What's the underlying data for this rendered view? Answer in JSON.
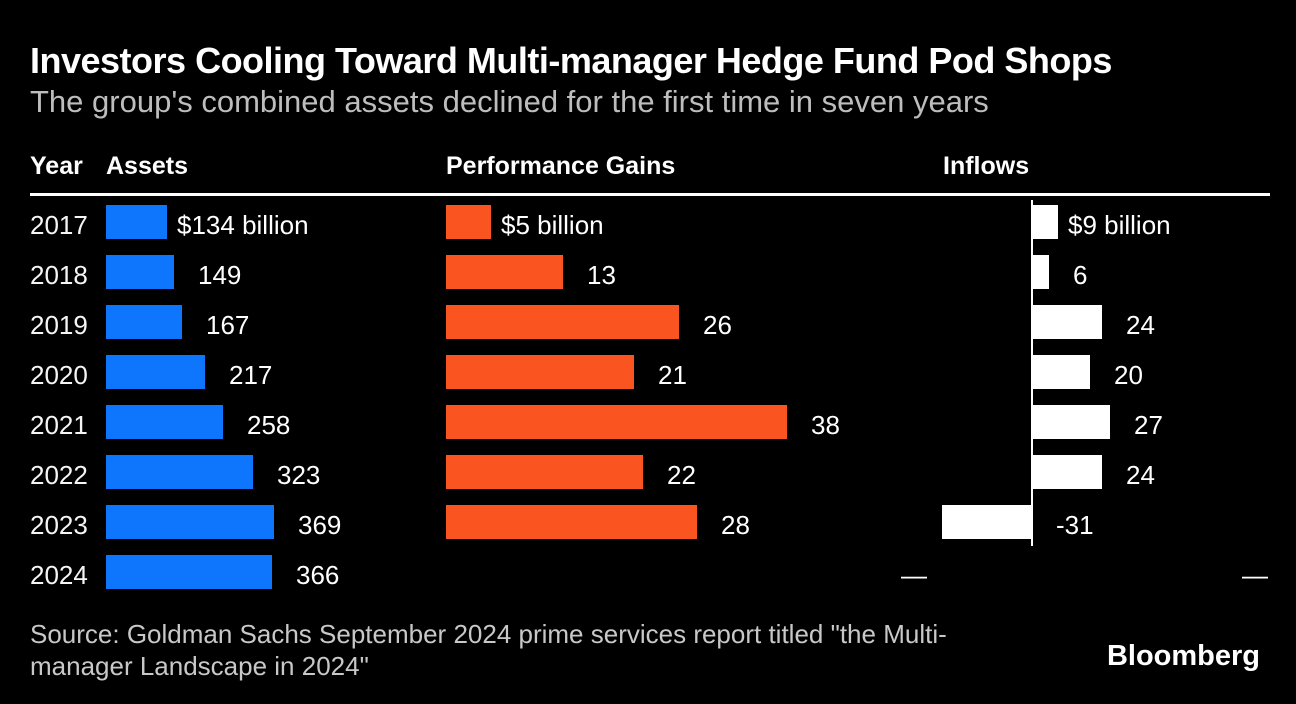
{
  "header": {
    "title": "Investors Cooling Toward Multi-manager Hedge Fund Pod Shops",
    "subtitle": "The group's combined assets declined for the first time in seven years"
  },
  "table": {
    "columns": [
      "Year",
      "Assets",
      "Performance Gains",
      "Inflows"
    ]
  },
  "chart_data": {
    "type": "bar",
    "orientation": "horizontal",
    "categories": [
      "2017",
      "2018",
      "2019",
      "2020",
      "2021",
      "2022",
      "2023",
      "2024"
    ],
    "value_unit": "$ billion",
    "missing_marker": "—",
    "series": [
      {
        "key": "assets",
        "name": "Assets",
        "color": "#0e76fd",
        "values": [
          134,
          149,
          167,
          217,
          258,
          323,
          369,
          366
        ],
        "labels": [
          "$134 billion",
          "149",
          "167",
          "217",
          "258",
          "323",
          "369",
          "366"
        ]
      },
      {
        "key": "performance_gains",
        "name": "Performance Gains",
        "color": "#fa5420",
        "values": [
          5,
          13,
          26,
          21,
          38,
          22,
          28,
          null
        ],
        "labels": [
          "$5 billion",
          "13",
          "26",
          "21",
          "38",
          "22",
          "28",
          "—"
        ]
      },
      {
        "key": "inflows",
        "name": "Inflows",
        "color": "#ffffff",
        "values": [
          9,
          6,
          24,
          20,
          27,
          24,
          -31,
          null
        ],
        "labels": [
          "$9 billion",
          "6",
          "24",
          "20",
          "27",
          "24",
          "-31",
          "—"
        ]
      }
    ]
  },
  "footer": {
    "source_line1": "Source: Goldman Sachs September 2024 prime services report titled \"the Multi-",
    "source_line2": "manager Landscape in 2024\"",
    "brand": "Bloomberg"
  },
  "colors": {
    "background": "#000000",
    "title": "#ffffff",
    "subtitle": "#bdbdbd",
    "assets_bar": "#0e76fd",
    "performance_bar": "#fa5420",
    "inflows_bar": "#ffffff",
    "source_text": "#c8c8c8"
  }
}
